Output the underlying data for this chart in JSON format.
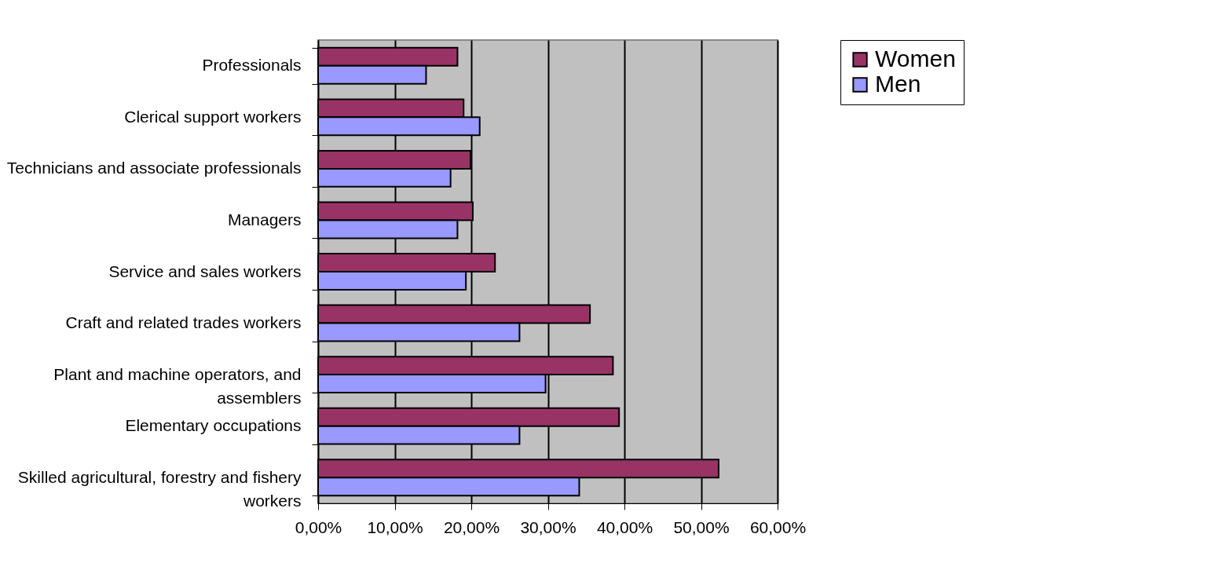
{
  "chart_data": {
    "type": "bar",
    "orientation": "horizontal",
    "categories": [
      "Professionals",
      "Clerical support workers",
      "Technicians and associate professionals",
      "Managers",
      "Service and sales workers",
      "Craft and related trades workers",
      "Plant and machine operators, and assemblers",
      "Elementary occupations",
      "Skilled agricultural, forestry and fishery workers"
    ],
    "series": [
      {
        "name": "Women",
        "color": "#993366",
        "values": [
          18.2,
          19.0,
          19.9,
          20.2,
          23.1,
          35.5,
          38.5,
          39.3,
          52.3
        ]
      },
      {
        "name": "Men",
        "color": "#9999ff",
        "values": [
          14.1,
          21.1,
          17.3,
          18.2,
          19.3,
          26.3,
          29.7,
          26.3,
          34.1
        ]
      }
    ],
    "xlim": [
      0,
      60
    ],
    "xticks": [
      {
        "value": 0,
        "label": "0,00%"
      },
      {
        "value": 10,
        "label": "10,00%"
      },
      {
        "value": 20,
        "label": "20,00%"
      },
      {
        "value": 30,
        "label": "30,00%"
      },
      {
        "value": 40,
        "label": "40,00%"
      },
      {
        "value": 50,
        "label": "50,00%"
      },
      {
        "value": 60,
        "label": "60,00%"
      }
    ],
    "grid": "x",
    "legend": "right"
  }
}
